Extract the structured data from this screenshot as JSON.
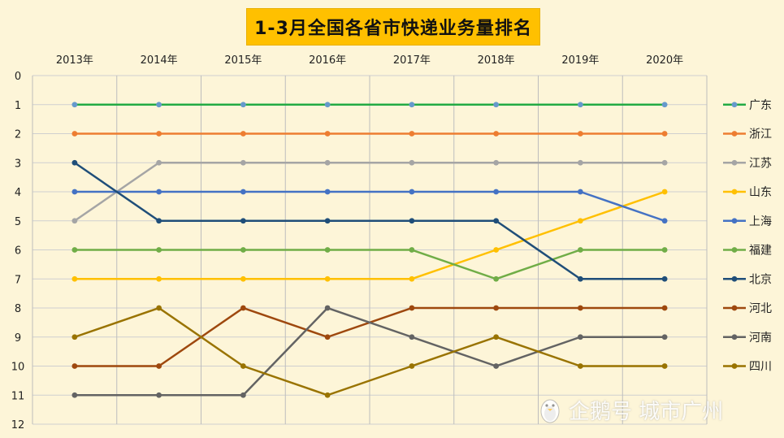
{
  "chart_data": {
    "type": "line",
    "title": "1-3月全国各省市快递业务量排名",
    "xlabel": "",
    "ylabel": "",
    "x": [
      "2013年",
      "2014年",
      "2015年",
      "2016年",
      "2017年",
      "2018年",
      "2019年",
      "2020年"
    ],
    "ylim": [
      0,
      12
    ],
    "yticks": [
      "0",
      "1",
      "2",
      "3",
      "4",
      "5",
      "6",
      "7",
      "8",
      "9",
      "10",
      "11",
      "12"
    ],
    "y_inverted": true,
    "x_axis_position": "top",
    "grid": true,
    "legend_position": "right",
    "series": [
      {
        "name": "广东",
        "color": "#22aa44",
        "marker_color": "#6699cc",
        "values": [
          1,
          1,
          1,
          1,
          1,
          1,
          1,
          1
        ]
      },
      {
        "name": "浙江",
        "color": "#ed7d31",
        "values": [
          2,
          2,
          2,
          2,
          2,
          2,
          2,
          2
        ]
      },
      {
        "name": "江苏",
        "color": "#a5a5a5",
        "values": [
          5,
          3,
          3,
          3,
          3,
          3,
          3,
          3
        ]
      },
      {
        "name": "山东",
        "color": "#ffc000",
        "values": [
          7,
          7,
          7,
          7,
          7,
          6,
          5,
          4
        ]
      },
      {
        "name": "上海",
        "color": "#4472c4",
        "values": [
          4,
          4,
          4,
          4,
          4,
          4,
          4,
          5
        ]
      },
      {
        "name": "福建",
        "color": "#70ad47",
        "values": [
          6,
          6,
          6,
          6,
          6,
          7,
          6,
          6
        ]
      },
      {
        "name": "北京",
        "color": "#1f4e79",
        "values": [
          3,
          5,
          5,
          5,
          5,
          5,
          7,
          7
        ]
      },
      {
        "name": "河北",
        "color": "#9e480e",
        "values": [
          10,
          10,
          8,
          9,
          8,
          8,
          8,
          8
        ]
      },
      {
        "name": "河南",
        "color": "#636363",
        "values": [
          11,
          11,
          11,
          8,
          9,
          10,
          9,
          9
        ]
      },
      {
        "name": "四川",
        "color": "#997300",
        "values": [
          9,
          8,
          10,
          11,
          10,
          9,
          10,
          10
        ]
      }
    ]
  },
  "watermark": {
    "text": "企鹅号 城市广州",
    "icon": "penguin-icon"
  }
}
